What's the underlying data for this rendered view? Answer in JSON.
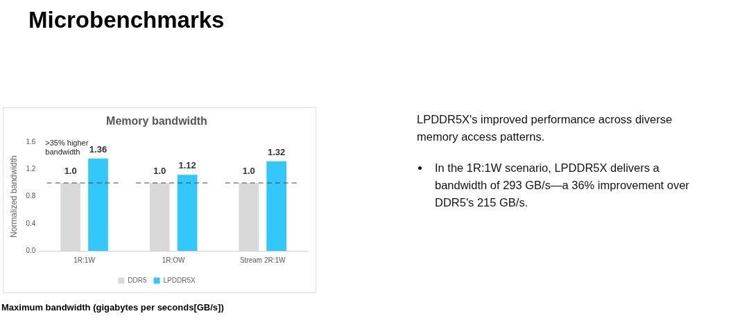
{
  "chart_data": {
    "type": "bar",
    "title": "Memory bandwidth",
    "ylabel": "Normalized bandwidth",
    "categories": [
      "1R:1W",
      "1R:OW",
      "Stream 2R:1W"
    ],
    "series": [
      {
        "name": "DDR5",
        "color": "#d9d9d9",
        "values": [
          1.0,
          1.0,
          1.0
        ],
        "value_labels": [
          "1.0",
          "1.0",
          "1.0"
        ]
      },
      {
        "name": "LPDDR5X",
        "color": "#33c8fc",
        "values": [
          1.36,
          1.12,
          1.32
        ],
        "value_labels": [
          "1.36",
          "1.12",
          "1.32"
        ]
      }
    ],
    "ylim": [
      0,
      1.6
    ],
    "yticks": [
      {
        "value": 0,
        "label": "0.0"
      },
      {
        "value": 0.4,
        "label": "0.4"
      },
      {
        "value": 0.8,
        "label": "0.8"
      },
      {
        "value": 1.2,
        "label": "1.2"
      },
      {
        "value": 1.6,
        "label": "1.6"
      }
    ],
    "ref_lines": [
      {
        "axis": "y",
        "value": 1.0,
        "color": "#404040",
        "line_style": "dashed"
      }
    ],
    "grid": false,
    "legend": "bottom",
    "annotations": [
      "Microbenchmarks",
      ">35% higher bandwidth",
      "LPDDR5X's improved performance across diverse memory access patterns.",
      "In the 1R:1W scenario, LPDDR5X delivers a bandwidth of 293 GB/s—a 36% improvement over DDR5's 215 GB/s.",
      "Maximum bandwidth (gigabytes per seconds[GB/s])"
    ]
  }
}
